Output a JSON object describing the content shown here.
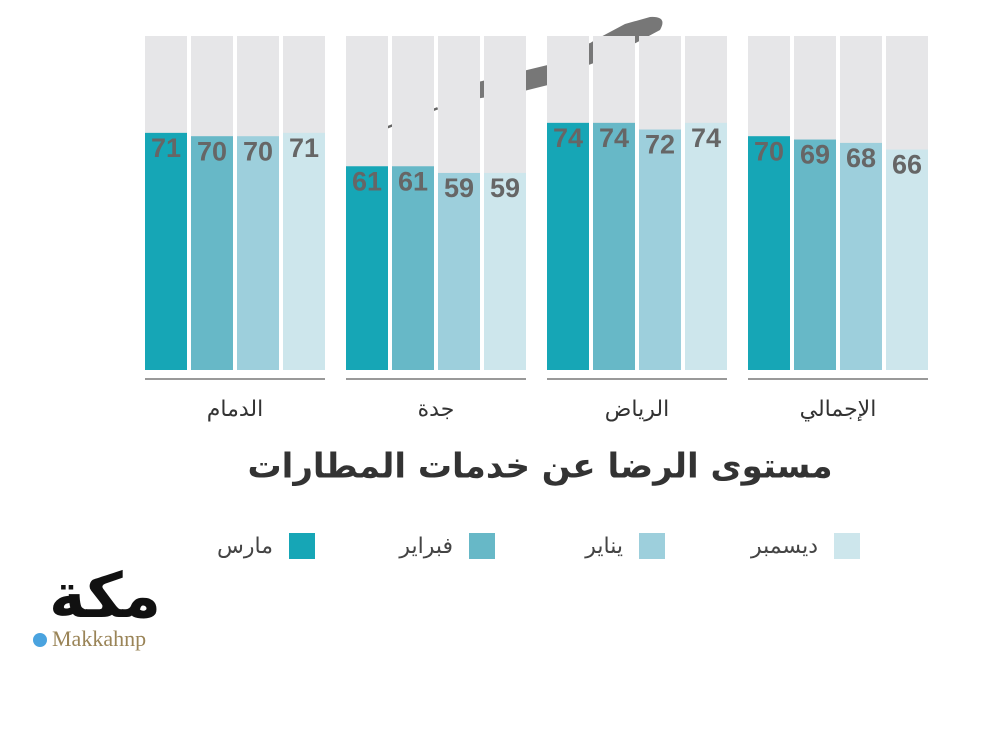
{
  "chart_data": {
    "type": "bar",
    "title": "مستوى الرضا عن خدمات المطارات",
    "categories": [
      "الإجمالي",
      "الرياض",
      "جدة",
      "الدمام"
    ],
    "series": [
      {
        "name": "مارس",
        "color": "#16a6b6",
        "values": [
          70,
          74,
          61,
          71
        ]
      },
      {
        "name": "فبراير",
        "color": "#67b8c7",
        "values": [
          69,
          74,
          61,
          70
        ]
      },
      {
        "name": "يناير",
        "color": "#9dcfdc",
        "values": [
          68,
          72,
          59,
          70
        ]
      },
      {
        "name": "ديسمبر",
        "color": "#cde6ec",
        "values": [
          66,
          74,
          59,
          71
        ]
      }
    ],
    "ylim": [
      0,
      100
    ]
  },
  "brand": {
    "logo": "مكة",
    "handle": "Makkahnp"
  }
}
